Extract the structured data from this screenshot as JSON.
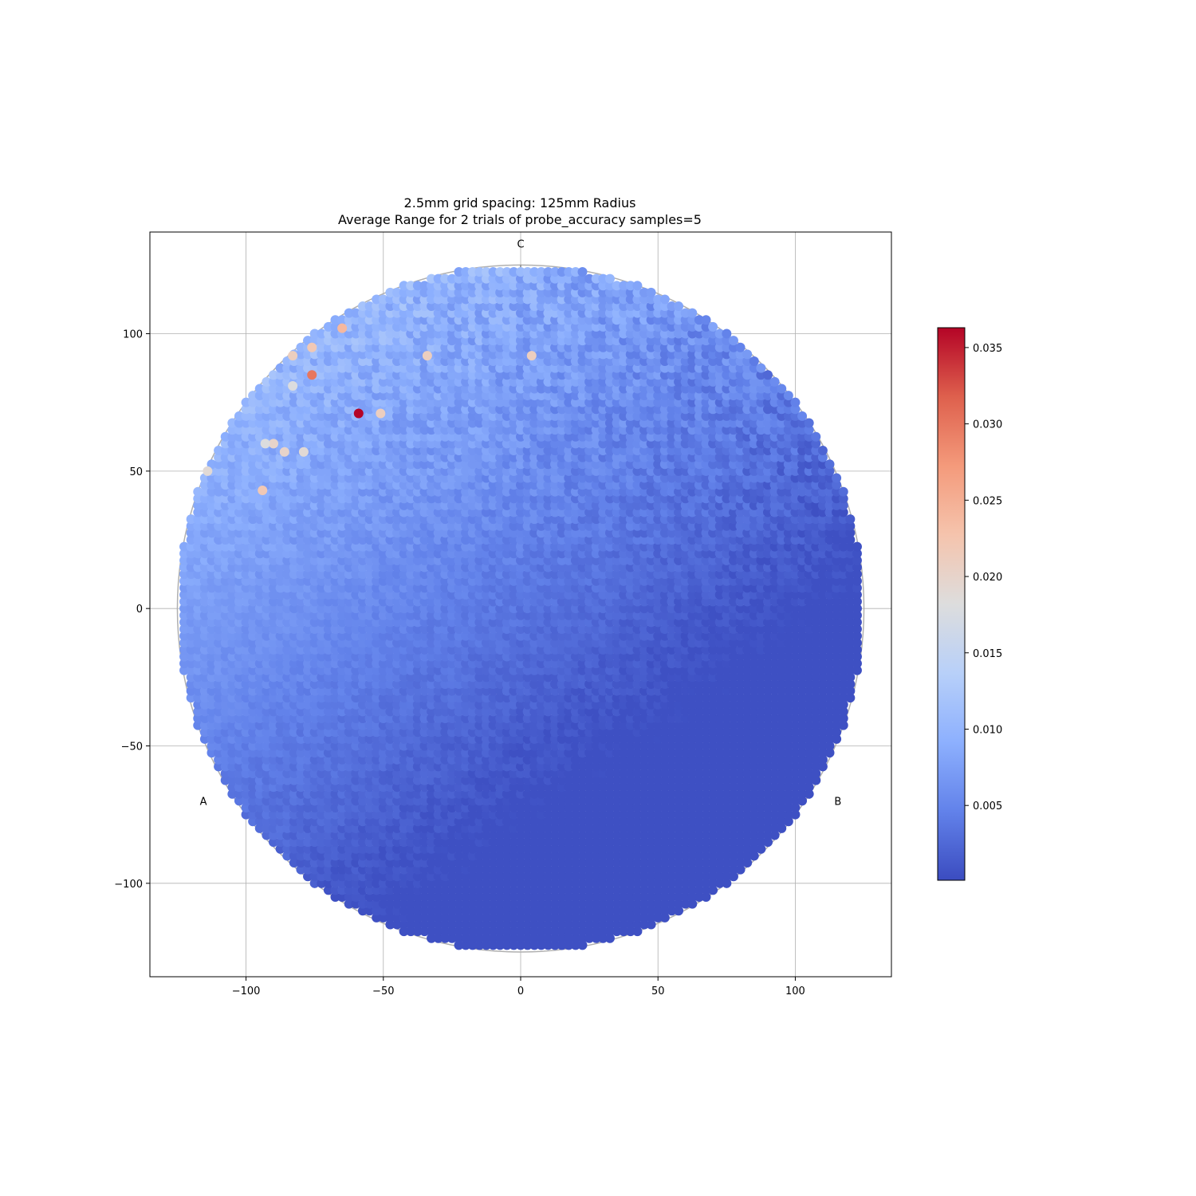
{
  "chart_data": {
    "type": "scatter",
    "title": "2.5mm grid spacing: 125mm Radius",
    "subtitle": "Average Range for 2 trials of probe_accuracy samples=5",
    "xlabel": "",
    "ylabel": "",
    "xlim": [
      -135,
      135
    ],
    "ylim": [
      -134,
      137
    ],
    "x_ticks": [
      -100,
      -50,
      0,
      50,
      100
    ],
    "x_tick_labels": [
      "−100",
      "−50",
      "0",
      "50",
      "100"
    ],
    "y_ticks": [
      -100,
      -50,
      0,
      50,
      100
    ],
    "y_tick_labels": [
      "−100",
      "−50",
      "0",
      "50",
      "100"
    ],
    "grid": true,
    "grid_spacing_mm": 2.5,
    "bed_radius_mm": 125,
    "point_grid": {
      "x_start": -122.5,
      "x_end": 122.5,
      "y_start": -122.5,
      "y_end": 122.5,
      "step": 2.5,
      "radius_limit": 125
    },
    "towers": [
      {
        "label": "A",
        "x": -108.25,
        "y": -62.5
      },
      {
        "label": "B",
        "x": 108.25,
        "y": -62.5
      },
      {
        "label": "C",
        "x": 0,
        "y": 125
      }
    ],
    "colormap": "coolwarm",
    "color_range": [
      0.0001,
      0.0363
    ],
    "colorbar_ticks": [
      0.005,
      0.01,
      0.015,
      0.02,
      0.025,
      0.03,
      0.035
    ],
    "colorbar_tick_labels": [
      "0.005",
      "0.010",
      "0.015",
      "0.020",
      "0.025",
      "0.030",
      "0.035"
    ],
    "value_model": {
      "description": "range value per point (mm); low in lower-right, rising toward upper-left",
      "base": 0.0035,
      "gradient_x": -3.2e-05,
      "gradient_y": 4.5e-05
    },
    "outliers": [
      {
        "x": -59,
        "y": 71,
        "value": 0.0363
      },
      {
        "x": -76,
        "y": 85,
        "value": 0.03
      },
      {
        "x": -65,
        "y": 102,
        "value": 0.024
      },
      {
        "x": -76,
        "y": 95,
        "value": 0.022
      },
      {
        "x": -83,
        "y": 92,
        "value": 0.021
      },
      {
        "x": -51,
        "y": 71,
        "value": 0.021
      },
      {
        "x": -34,
        "y": 92,
        "value": 0.021
      },
      {
        "x": 4,
        "y": 92,
        "value": 0.021
      },
      {
        "x": -94,
        "y": 43,
        "value": 0.022
      },
      {
        "x": -90,
        "y": 60,
        "value": 0.02
      },
      {
        "x": -86,
        "y": 57,
        "value": 0.02
      },
      {
        "x": -79,
        "y": 57,
        "value": 0.019
      },
      {
        "x": -83,
        "y": 81,
        "value": 0.018
      },
      {
        "x": -93,
        "y": 60,
        "value": 0.018
      },
      {
        "x": -114,
        "y": 50,
        "value": 0.019
      }
    ]
  }
}
